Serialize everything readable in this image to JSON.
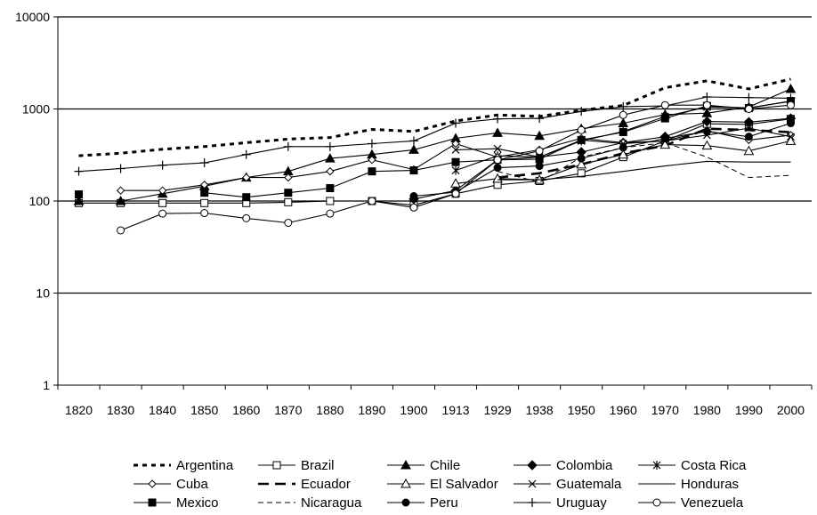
{
  "chart_data": {
    "type": "line",
    "title": "",
    "xlabel": "",
    "ylabel": "",
    "yscale": "log",
    "ylim": [
      1,
      10000
    ],
    "grid": "horizontal major gridlines",
    "legend_position": "bottom",
    "categories": [
      "1820",
      "1830",
      "1840",
      "1850",
      "1860",
      "1870",
      "1880",
      "1890",
      "1900",
      "1913",
      "1929",
      "1938",
      "1950",
      "1960",
      "1970",
      "1980",
      "1990",
      "2000"
    ],
    "y_ticks": [
      "1",
      "10",
      "100",
      "1000",
      "10000"
    ],
    "series": [
      {
        "name": "Argentina",
        "style": "dotted-thick",
        "marker": "none",
        "values": [
          310,
          330,
          365,
          390,
          430,
          470,
          490,
          600,
          570,
          740,
          860,
          830,
          970,
          1090,
          1700,
          2020,
          1650,
          2110
        ]
      },
      {
        "name": "Brazil",
        "style": "solid",
        "marker": "open-square",
        "values": [
          95,
          95,
          95,
          95,
          95,
          97,
          100,
          100,
          90,
          120,
          150,
          165,
          200,
          300,
          450,
          690,
          680,
          780
        ]
      },
      {
        "name": "Chile",
        "style": "solid",
        "marker": "filled-triangle",
        "values": [
          100,
          100,
          120,
          145,
          180,
          210,
          290,
          320,
          360,
          480,
          550,
          510,
          610,
          700,
          870,
          900,
          1050,
          1650
        ]
      },
      {
        "name": "Colombia",
        "style": "solid",
        "marker": "filled-diamond",
        "values": [
          null,
          null,
          null,
          null,
          null,
          null,
          null,
          null,
          105,
          130,
          280,
          300,
          340,
          430,
          500,
          730,
          720,
          790
        ]
      },
      {
        "name": "Costa Rica",
        "style": "solid",
        "marker": "asterisk",
        "values": [
          null,
          null,
          null,
          null,
          null,
          null,
          null,
          null,
          null,
          215,
          310,
          300,
          450,
          570,
          830,
          1050,
          1030,
          1210
        ]
      },
      {
        "name": "Cuba",
        "style": "solid",
        "marker": "open-diamond",
        "values": [
          null,
          130,
          130,
          150,
          180,
          180,
          210,
          280,
          220,
          420,
          300,
          360,
          480,
          430,
          450,
          580,
          460,
          520
        ]
      },
      {
        "name": "Ecuador",
        "style": "long-dash-thick",
        "marker": "none",
        "values": [
          null,
          null,
          null,
          null,
          null,
          null,
          null,
          null,
          null,
          null,
          180,
          200,
          250,
          330,
          400,
          610,
          590,
          560
        ]
      },
      {
        "name": "El Salvador",
        "style": "solid",
        "marker": "open-triangle",
        "values": [
          null,
          null,
          null,
          null,
          null,
          null,
          null,
          null,
          null,
          155,
          175,
          170,
          250,
          320,
          410,
          400,
          350,
          450
        ]
      },
      {
        "name": "Guatemala",
        "style": "solid",
        "marker": "x",
        "values": [
          null,
          null,
          null,
          null,
          null,
          null,
          null,
          null,
          null,
          360,
          370,
          300,
          460,
          420,
          450,
          520,
          620,
          500
        ]
      },
      {
        "name": "Honduras",
        "style": "solid",
        "marker": "none",
        "values": [
          null,
          null,
          null,
          null,
          null,
          null,
          null,
          null,
          null,
          null,
          170,
          170,
          185,
          210,
          240,
          270,
          265,
          265
        ]
      },
      {
        "name": "Mexico",
        "style": "solid",
        "marker": "filled-square",
        "values": [
          118,
          null,
          null,
          123,
          110,
          123,
          138,
          210,
          215,
          265,
          280,
          285,
          460,
          560,
          790,
          1080,
          1020,
          1220
        ]
      },
      {
        "name": "Nicaragua",
        "style": "dashed-thin",
        "marker": "none",
        "values": [
          null,
          null,
          null,
          null,
          null,
          null,
          null,
          null,
          null,
          null,
          210,
          160,
          300,
          380,
          430,
          300,
          180,
          190
        ]
      },
      {
        "name": "Peru",
        "style": "solid",
        "marker": "filled-circle",
        "values": [
          null,
          null,
          null,
          null,
          null,
          null,
          null,
          null,
          113,
          125,
          230,
          240,
          290,
          380,
          480,
          570,
          500,
          700
        ]
      },
      {
        "name": "Uruguay",
        "style": "solid",
        "marker": "plus",
        "values": [
          210,
          225,
          245,
          260,
          320,
          390,
          390,
          420,
          450,
          700,
          780,
          790,
          940,
          1060,
          1080,
          1350,
          1330,
          1310
        ]
      },
      {
        "name": "Venezuela",
        "style": "solid",
        "marker": "open-circle",
        "values": [
          null,
          48,
          73,
          74,
          65,
          58,
          73,
          100,
          85,
          120,
          280,
          350,
          590,
          860,
          1100,
          1100,
          1000,
          1100
        ]
      }
    ]
  }
}
